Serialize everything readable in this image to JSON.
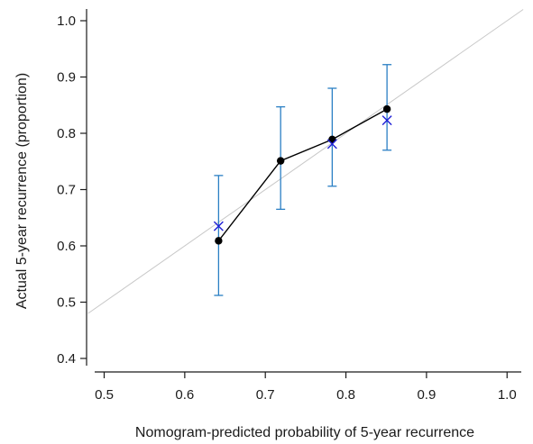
{
  "chart_data": {
    "type": "scatter",
    "title": "",
    "xlabel": "Nomogram-predicted probability of 5-year recurrence",
    "ylabel": "Actual 5-year recurrence (proportion)",
    "xlim": [
      0.48,
      1.02
    ],
    "ylim": [
      0.38,
      1.02
    ],
    "x_ticks": [
      0.5,
      0.6,
      0.7,
      0.8,
      0.9,
      1.0
    ],
    "x_tick_labels": [
      "0.5",
      "0.6",
      "0.7",
      "0.8",
      "0.9",
      "1.0"
    ],
    "y_ticks": [
      0.4,
      0.5,
      0.6,
      0.7,
      0.8,
      0.9,
      1.0
    ],
    "y_tick_labels": [
      "0.4",
      "0.5",
      "0.6",
      "0.7",
      "0.8",
      "0.9",
      "1.0"
    ],
    "grid": false,
    "reference_line": {
      "x": [
        0.48,
        1.02
      ],
      "y": [
        0.48,
        1.02
      ],
      "color": "#c8c8c8"
    },
    "series": [
      {
        "marker": "dot",
        "color": "#000000",
        "connected": true,
        "x": [
          0.642,
          0.719,
          0.783,
          0.851
        ],
        "y": [
          0.609,
          0.751,
          0.789,
          0.843
        ]
      },
      {
        "marker": "x",
        "color": "#1f1fd6",
        "connected": false,
        "x": [
          0.642,
          0.783,
          0.851
        ],
        "y": [
          0.635,
          0.781,
          0.823
        ]
      }
    ],
    "error_bars": {
      "color": "#2a7fc4",
      "x": [
        0.642,
        0.719,
        0.783,
        0.851
      ],
      "low": [
        0.512,
        0.665,
        0.706,
        0.77
      ],
      "high": [
        0.725,
        0.847,
        0.88,
        0.922
      ]
    }
  }
}
